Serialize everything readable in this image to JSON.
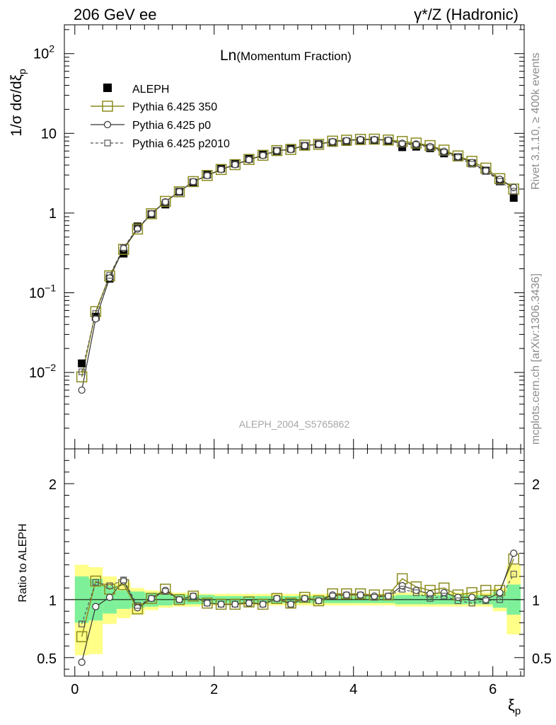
{
  "header": {
    "left": "206 GeV ee",
    "right_prefix": "γ*/Z",
    "right_suffix": " (Hadronic)"
  },
  "side_text": {
    "upper": "Rivet 3.1.10, ≥ 400k events",
    "lower": "mcplots.cern.ch [arXiv:1306.3436]"
  },
  "colors": {
    "pythia350": "#8b8b1f",
    "pythia_p0": "#333333",
    "pythia_p2010": "#555555",
    "band_inner": "#7ff09a",
    "band_outer": "#ffff88",
    "watermark": "#a6a6a6"
  },
  "chart_data": [
    {
      "type": "scatter",
      "title_main": "Ln",
      "title_sub": "(Momentum Fraction)",
      "ylabel": "1/σ dσ/dξ_p",
      "ylabel_main": "1/σ dσ/dξ",
      "ylabel_sub": "p",
      "y_scale": "log",
      "ylim": [
        0.0011,
        230
      ],
      "xlim": [
        -0.15,
        6.45
      ],
      "grid": false,
      "legend_position": "top-left",
      "watermark": "ALEPH_2004_S5765862",
      "y_tick_labels": [
        {
          "value": 0.01,
          "base": "10",
          "exp": "−2"
        },
        {
          "value": 0.1,
          "base": "10",
          "exp": "−1"
        },
        {
          "value": 1,
          "base": "1",
          "exp": ""
        },
        {
          "value": 10,
          "base": "10",
          "exp": ""
        },
        {
          "value": 100,
          "base": "10",
          "exp": "2"
        }
      ],
      "x": [
        0.1,
        0.3,
        0.5,
        0.7,
        0.9,
        1.1,
        1.3,
        1.5,
        1.7,
        1.9,
        2.1,
        2.3,
        2.5,
        2.7,
        2.9,
        3.1,
        3.3,
        3.5,
        3.7,
        3.9,
        4.1,
        4.3,
        4.5,
        4.7,
        4.9,
        5.1,
        5.3,
        5.5,
        5.7,
        5.9,
        6.1,
        6.3
      ],
      "series": [
        {
          "name": "ALEPH",
          "marker": "filled-square",
          "values": [
            0.013,
            0.05,
            0.15,
            0.31,
            0.68,
            0.97,
            1.28,
            1.85,
            2.4,
            3.05,
            3.65,
            4.2,
            4.8,
            5.5,
            6.0,
            6.5,
            6.95,
            7.3,
            7.6,
            7.8,
            8.0,
            8.1,
            7.95,
            6.7,
            6.8,
            6.5,
            5.6,
            5.0,
            4.2,
            3.4,
            2.5,
            1.55
          ]
        },
        {
          "name": "Pythia 6.425 350",
          "marker": "open-square",
          "values": [
            0.0088,
            0.058,
            0.163,
            0.35,
            0.63,
            0.98,
            1.4,
            1.85,
            2.48,
            2.96,
            3.52,
            4.05,
            4.7,
            5.3,
            6.08,
            6.28,
            7.1,
            7.28,
            7.98,
            8.2,
            8.4,
            8.45,
            8.24,
            7.9,
            7.55,
            7.02,
            6.16,
            5.2,
            4.45,
            3.66,
            2.7,
            2.0
          ]
        },
        {
          "name": "Pythia 6.425 p0",
          "marker": "open-circle",
          "values": [
            0.006,
            0.047,
            0.153,
            0.36,
            0.63,
            0.98,
            1.38,
            1.85,
            2.47,
            2.96,
            3.52,
            4.05,
            4.65,
            5.28,
            6.05,
            6.27,
            7.0,
            7.28,
            7.88,
            8.1,
            8.35,
            8.35,
            8.2,
            7.5,
            7.35,
            6.85,
            5.95,
            5.1,
            4.3,
            3.4,
            2.65,
            2.1
          ]
        },
        {
          "name": "Pythia 6.425 p2010",
          "marker": "small-open-square",
          "dashed": true,
          "values": [
            0.0102,
            0.055,
            0.165,
            0.37,
            0.65,
            0.98,
            1.37,
            1.86,
            2.48,
            2.95,
            3.52,
            4.05,
            4.68,
            5.28,
            6.05,
            6.25,
            7.0,
            7.28,
            7.85,
            8.1,
            8.3,
            8.3,
            8.2,
            7.3,
            7.2,
            6.6,
            5.75,
            4.96,
            4.1,
            3.38,
            2.5,
            1.88
          ]
        }
      ]
    },
    {
      "type": "line",
      "ylabel": "Ratio to ALEPH",
      "xlabel": "ξ",
      "xlabel_sub": "p",
      "ylim": [
        0.34,
        2.3
      ],
      "xlim": [
        -0.15,
        6.45
      ],
      "grid": false,
      "reference_line": 1,
      "y_ticks": [
        0.5,
        1,
        2
      ],
      "y_tick_labels": [
        "0.5",
        "1",
        "2"
      ],
      "x_ticks": [
        0,
        2,
        4,
        6
      ],
      "x_tick_labels": [
        "0",
        "2",
        "4",
        "6"
      ],
      "bins_x_edges": [
        0.0,
        0.2,
        0.4,
        0.6,
        0.8,
        1.0,
        1.2,
        1.4,
        1.6,
        1.8,
        2.0,
        2.2,
        2.4,
        2.6,
        2.8,
        3.0,
        3.2,
        3.4,
        3.6,
        3.8,
        4.0,
        4.2,
        4.4,
        4.6,
        4.8,
        5.0,
        5.2,
        5.4,
        5.6,
        5.8,
        6.0,
        6.2,
        6.4
      ],
      "band_inner_lo": [
        0.8,
        0.82,
        0.88,
        0.92,
        0.93,
        0.94,
        0.95,
        0.96,
        0.96,
        0.96,
        0.97,
        0.97,
        0.97,
        0.97,
        0.97,
        0.97,
        0.97,
        0.97,
        0.97,
        0.97,
        0.97,
        0.97,
        0.97,
        0.96,
        0.96,
        0.96,
        0.96,
        0.96,
        0.96,
        0.96,
        0.93,
        0.87
      ],
      "band_inner_hi": [
        1.2,
        1.18,
        1.12,
        1.08,
        1.07,
        1.06,
        1.05,
        1.04,
        1.04,
        1.04,
        1.03,
        1.03,
        1.03,
        1.03,
        1.03,
        1.03,
        1.03,
        1.03,
        1.03,
        1.03,
        1.03,
        1.03,
        1.03,
        1.04,
        1.04,
        1.04,
        1.04,
        1.04,
        1.04,
        1.04,
        1.07,
        1.13
      ],
      "band_outer_lo": [
        0.52,
        0.53,
        0.79,
        0.84,
        0.87,
        0.91,
        0.93,
        0.94,
        0.94,
        0.95,
        0.95,
        0.95,
        0.95,
        0.95,
        0.95,
        0.95,
        0.95,
        0.95,
        0.95,
        0.95,
        0.95,
        0.95,
        0.95,
        0.94,
        0.94,
        0.94,
        0.94,
        0.94,
        0.94,
        0.94,
        0.9,
        0.7
      ],
      "band_outer_hi": [
        1.3,
        1.28,
        1.2,
        1.15,
        1.1,
        1.08,
        1.07,
        1.06,
        1.06,
        1.05,
        1.05,
        1.05,
        1.05,
        1.05,
        1.05,
        1.05,
        1.05,
        1.05,
        1.05,
        1.05,
        1.05,
        1.05,
        1.05,
        1.06,
        1.06,
        1.06,
        1.06,
        1.06,
        1.06,
        1.06,
        1.1,
        1.3
      ],
      "x": [
        0.1,
        0.3,
        0.5,
        0.7,
        0.9,
        1.1,
        1.3,
        1.5,
        1.7,
        1.9,
        2.1,
        2.3,
        2.5,
        2.7,
        2.9,
        3.1,
        3.3,
        3.5,
        3.7,
        3.9,
        4.1,
        4.3,
        4.5,
        4.7,
        4.9,
        5.1,
        5.3,
        5.5,
        5.7,
        5.9,
        6.1,
        6.3
      ],
      "series": [
        {
          "name": "Pythia 6.425 350",
          "marker": "open-square",
          "values": [
            0.68,
            1.16,
            1.09,
            1.13,
            0.92,
            1.01,
            1.09,
            1.0,
            1.03,
            0.97,
            0.96,
            0.96,
            0.98,
            0.96,
            1.01,
            0.97,
            1.02,
            0.99,
            1.05,
            1.05,
            1.05,
            1.04,
            1.04,
            1.18,
            1.11,
            1.08,
            1.1,
            1.04,
            1.06,
            1.08,
            1.08,
            1.35
          ]
        },
        {
          "name": "Pythia 6.425 p0",
          "marker": "open-circle",
          "values": [
            0.46,
            0.94,
            1.02,
            1.16,
            0.93,
            1.01,
            1.08,
            1.0,
            1.03,
            0.97,
            0.96,
            0.96,
            0.97,
            0.96,
            1.01,
            0.96,
            1.01,
            0.99,
            1.04,
            1.04,
            1.04,
            1.03,
            1.03,
            1.12,
            1.08,
            1.05,
            1.06,
            1.02,
            1.02,
            1.0,
            1.06,
            1.4
          ]
        },
        {
          "name": "Pythia 6.425 p2010",
          "marker": "small-open-square",
          "dashed": true,
          "values": [
            0.79,
            1.15,
            1.12,
            1.17,
            0.95,
            1.01,
            1.07,
            1.0,
            1.03,
            0.97,
            0.96,
            0.96,
            0.97,
            0.96,
            1.01,
            0.96,
            1.01,
            0.99,
            1.03,
            1.04,
            1.04,
            1.02,
            1.03,
            1.09,
            1.06,
            1.01,
            1.03,
            0.99,
            0.97,
            0.99,
            1.0,
            1.22
          ]
        }
      ]
    }
  ]
}
